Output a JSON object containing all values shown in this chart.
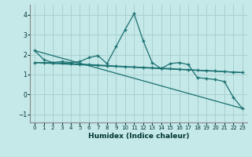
{
  "xlabel": "Humidex (Indice chaleur)",
  "bg_color": "#c5e8e8",
  "grid_color": "#aad0d0",
  "line_color": "#1a7070",
  "xlim": [
    -0.5,
    23.5
  ],
  "ylim": [
    -1.4,
    4.5
  ],
  "xticks": [
    0,
    1,
    2,
    3,
    4,
    5,
    6,
    7,
    8,
    9,
    10,
    11,
    12,
    13,
    14,
    15,
    16,
    17,
    18,
    19,
    20,
    21,
    22,
    23
  ],
  "yticks": [
    -1,
    0,
    1,
    2,
    3,
    4
  ],
  "series1_x": [
    0,
    1,
    2,
    3,
    4,
    5,
    6,
    7,
    8,
    9,
    10,
    11,
    12,
    13,
    14,
    15,
    16,
    17,
    18,
    19,
    20,
    21,
    22,
    23
  ],
  "series1_y": [
    2.2,
    1.75,
    1.6,
    1.65,
    1.6,
    1.65,
    1.85,
    1.95,
    1.55,
    2.4,
    3.25,
    4.05,
    2.7,
    1.6,
    1.3,
    1.55,
    1.6,
    1.5,
    0.85,
    0.8,
    0.75,
    0.65,
    -0.15,
    -0.7
  ],
  "series2_x": [
    0,
    1,
    2,
    3,
    4,
    5,
    6,
    7,
    8,
    9,
    10,
    11,
    12,
    13,
    14,
    15,
    16,
    17,
    18,
    19,
    20,
    21,
    22,
    23
  ],
  "series2_y": [
    1.6,
    1.6,
    1.6,
    1.58,
    1.55,
    1.53,
    1.5,
    1.48,
    1.45,
    1.43,
    1.4,
    1.38,
    1.36,
    1.34,
    1.32,
    1.3,
    1.27,
    1.25,
    1.22,
    1.2,
    1.18,
    1.15,
    1.12,
    1.1
  ],
  "series3_x": [
    0,
    23
  ],
  "series3_y": [
    2.2,
    -0.7
  ],
  "series4_x": [
    0,
    23
  ],
  "series4_y": [
    1.6,
    1.1
  ]
}
